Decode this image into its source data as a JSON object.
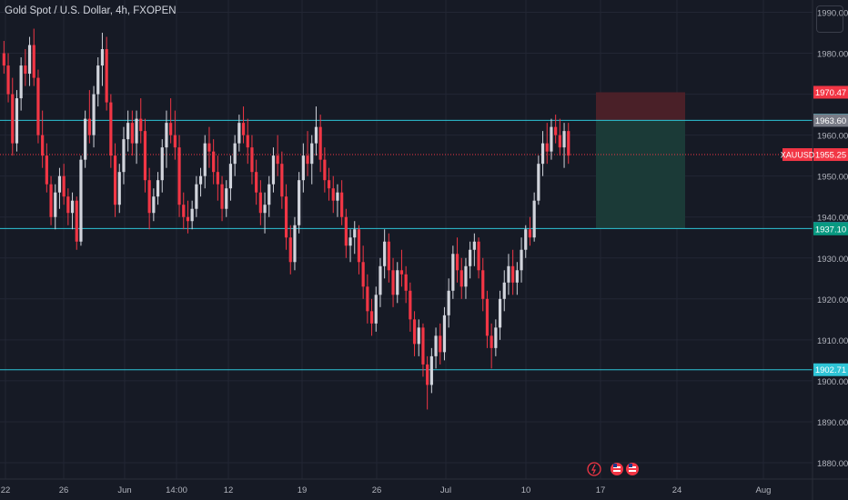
{
  "header": {
    "title": "Gold Spot / U.S. Dollar, 4h, FXOPEN"
  },
  "colors": {
    "background": "#161a25",
    "grid": "#222634",
    "up": "#d1d4dc",
    "down": "#f23645",
    "hline": "#2ec4d6",
    "tp_zone": "#1b3a37",
    "sl_zone": "#4a2028",
    "axis_text": "#b2b5be"
  },
  "events": [
    "flash-icon",
    "us-flag-icon",
    "us-flag-icon"
  ],
  "chart_data": {
    "type": "candlestick",
    "symbol": "XAUUSD",
    "ylim": [
      1876,
      1993
    ],
    "y_ticks": [
      "1880.00",
      "1890.00",
      "1900.00",
      "1910.00",
      "1920.00",
      "1930.00",
      "1940.00",
      "1950.00",
      "1960.00",
      "1970.00",
      "1980.00",
      "1990.00"
    ],
    "x_ticks": [
      "22",
      "26",
      "Jun",
      "14:00",
      "12",
      "19",
      "26",
      "Jul",
      "10",
      "17",
      "24",
      "Aug"
    ],
    "horizontal_levels": [
      1963.6,
      1937.2,
      1902.71
    ],
    "price_labels": [
      {
        "text": "1970.47",
        "value": 1970.47,
        "color": "#f23645"
      },
      {
        "text": "1963.67",
        "value": 1963.67,
        "color": "#2ec4d6"
      },
      {
        "text": "1963.60",
        "value": 1963.6,
        "color": "#787b86"
      },
      {
        "text": "1955.25",
        "value": 1955.25,
        "color": "#f23645"
      },
      {
        "text": "1937.20",
        "value": 1937.2,
        "color": "#2ec4d6"
      },
      {
        "text": "1937.10",
        "value": 1937.1,
        "color": "#089981"
      },
      {
        "text": "1902.71",
        "value": 1902.71,
        "color": "#2ec4d6"
      }
    ],
    "symbol_label": "XAUUSD",
    "last_price": 1955.25,
    "position": {
      "entry": 1963.6,
      "stop": 1970.47,
      "target": 1937.1
    },
    "candles": [
      [
        1980,
        1983,
        1975,
        1977
      ],
      [
        1977,
        1980,
        1968,
        1970
      ],
      [
        1970,
        1974,
        1955,
        1958
      ],
      [
        1958,
        1971,
        1956,
        1969
      ],
      [
        1969,
        1979,
        1966,
        1977
      ],
      [
        1977,
        1981,
        1972,
        1975
      ],
      [
        1975,
        1984,
        1972,
        1982
      ],
      [
        1982,
        1986,
        1972,
        1974
      ],
      [
        1974,
        1976,
        1958,
        1960
      ],
      [
        1960,
        1966,
        1952,
        1955
      ],
      [
        1955,
        1958,
        1946,
        1948
      ],
      [
        1948,
        1950,
        1938,
        1940
      ],
      [
        1940,
        1948,
        1937,
        1946
      ],
      [
        1946,
        1952,
        1942,
        1950
      ],
      [
        1950,
        1953,
        1943,
        1945
      ],
      [
        1945,
        1947,
        1938,
        1941
      ],
      [
        1941,
        1946,
        1937,
        1944
      ],
      [
        1944,
        1945,
        1932,
        1934
      ],
      [
        1934,
        1955,
        1933,
        1954
      ],
      [
        1954,
        1966,
        1952,
        1964
      ],
      [
        1964,
        1971,
        1958,
        1960
      ],
      [
        1960,
        1972,
        1957,
        1970
      ],
      [
        1970,
        1979,
        1967,
        1977
      ],
      [
        1977,
        1985,
        1972,
        1981
      ],
      [
        1981,
        1984,
        1966,
        1968
      ],
      [
        1968,
        1970,
        1952,
        1955
      ],
      [
        1955,
        1958,
        1940,
        1943
      ],
      [
        1943,
        1953,
        1941,
        1951
      ],
      [
        1951,
        1962,
        1948,
        1959
      ],
      [
        1959,
        1966,
        1956,
        1963
      ],
      [
        1963,
        1966,
        1955,
        1958
      ],
      [
        1958,
        1966,
        1953,
        1964
      ],
      [
        1964,
        1969,
        1958,
        1961
      ],
      [
        1961,
        1964,
        1946,
        1949
      ],
      [
        1949,
        1952,
        1937,
        1941
      ],
      [
        1941,
        1947,
        1939,
        1945
      ],
      [
        1945,
        1951,
        1943,
        1949
      ],
      [
        1949,
        1959,
        1946,
        1957
      ],
      [
        1957,
        1966,
        1952,
        1963
      ],
      [
        1963,
        1969,
        1958,
        1960
      ],
      [
        1960,
        1966,
        1954,
        1957
      ],
      [
        1957,
        1960,
        1940,
        1943
      ],
      [
        1943,
        1946,
        1937,
        1940
      ],
      [
        1940,
        1944,
        1936,
        1939
      ],
      [
        1939,
        1944,
        1937,
        1942
      ],
      [
        1942,
        1950,
        1940,
        1948
      ],
      [
        1948,
        1952,
        1945,
        1950
      ],
      [
        1950,
        1960,
        1947,
        1958
      ],
      [
        1958,
        1962,
        1952,
        1956
      ],
      [
        1956,
        1959,
        1948,
        1951
      ],
      [
        1951,
        1955,
        1944,
        1948
      ],
      [
        1948,
        1950,
        1939,
        1942
      ],
      [
        1942,
        1949,
        1940,
        1947
      ],
      [
        1947,
        1955,
        1944,
        1953
      ],
      [
        1953,
        1960,
        1950,
        1958
      ],
      [
        1958,
        1965,
        1956,
        1963
      ],
      [
        1963,
        1967,
        1958,
        1960
      ],
      [
        1960,
        1964,
        1953,
        1957
      ],
      [
        1957,
        1960,
        1948,
        1951
      ],
      [
        1951,
        1954,
        1943,
        1946
      ],
      [
        1946,
        1949,
        1938,
        1941
      ],
      [
        1941,
        1946,
        1936,
        1943
      ],
      [
        1943,
        1950,
        1940,
        1948
      ],
      [
        1948,
        1957,
        1946,
        1955
      ],
      [
        1955,
        1960,
        1950,
        1953
      ],
      [
        1953,
        1956,
        1942,
        1945
      ],
      [
        1945,
        1948,
        1932,
        1935
      ],
      [
        1935,
        1938,
        1926,
        1929
      ],
      [
        1929,
        1940,
        1927,
        1938
      ],
      [
        1938,
        1951,
        1936,
        1949
      ],
      [
        1949,
        1958,
        1946,
        1955
      ],
      [
        1955,
        1961,
        1950,
        1953
      ],
      [
        1953,
        1960,
        1948,
        1958
      ],
      [
        1958,
        1967,
        1955,
        1962
      ],
      [
        1962,
        1965,
        1951,
        1954
      ],
      [
        1954,
        1957,
        1946,
        1949
      ],
      [
        1949,
        1952,
        1944,
        1947
      ],
      [
        1947,
        1950,
        1941,
        1944
      ],
      [
        1944,
        1948,
        1940,
        1946
      ],
      [
        1946,
        1949,
        1938,
        1940
      ],
      [
        1940,
        1942,
        1930,
        1933
      ],
      [
        1933,
        1937,
        1929,
        1935
      ],
      [
        1935,
        1939,
        1931,
        1937
      ],
      [
        1937,
        1938,
        1926,
        1929
      ],
      [
        1929,
        1933,
        1920,
        1923
      ],
      [
        1923,
        1926,
        1914,
        1917
      ],
      [
        1917,
        1920,
        1911,
        1914
      ],
      [
        1914,
        1923,
        1912,
        1921
      ],
      [
        1921,
        1930,
        1918,
        1928
      ],
      [
        1928,
        1937,
        1925,
        1934
      ],
      [
        1934,
        1936,
        1924,
        1927
      ],
      [
        1927,
        1930,
        1918,
        1921
      ],
      [
        1921,
        1929,
        1919,
        1927
      ],
      [
        1927,
        1932,
        1923,
        1926
      ],
      [
        1926,
        1928,
        1919,
        1922
      ],
      [
        1922,
        1924,
        1912,
        1915
      ],
      [
        1915,
        1917,
        1906,
        1909
      ],
      [
        1909,
        1915,
        1906,
        1913
      ],
      [
        1913,
        1914,
        1901,
        1904
      ],
      [
        1904,
        1906,
        1893,
        1899
      ],
      [
        1899,
        1908,
        1897,
        1906
      ],
      [
        1906,
        1913,
        1903,
        1911
      ],
      [
        1911,
        1914,
        1904,
        1907
      ],
      [
        1907,
        1918,
        1905,
        1916
      ],
      [
        1916,
        1925,
        1913,
        1922
      ],
      [
        1922,
        1933,
        1920,
        1931
      ],
      [
        1931,
        1935,
        1924,
        1927
      ],
      [
        1927,
        1930,
        1920,
        1923
      ],
      [
        1923,
        1930,
        1920,
        1928
      ],
      [
        1928,
        1934,
        1925,
        1932
      ],
      [
        1932,
        1936,
        1928,
        1934
      ],
      [
        1934,
        1935,
        1925,
        1927
      ],
      [
        1927,
        1930,
        1917,
        1920
      ],
      [
        1920,
        1922,
        1908,
        1911
      ],
      [
        1911,
        1914,
        1903,
        1908
      ],
      [
        1908,
        1915,
        1906,
        1913
      ],
      [
        1913,
        1922,
        1910,
        1920
      ],
      [
        1920,
        1927,
        1917,
        1924
      ],
      [
        1924,
        1931,
        1921,
        1928
      ],
      [
        1928,
        1932,
        1921,
        1924
      ],
      [
        1924,
        1929,
        1921,
        1927
      ],
      [
        1927,
        1935,
        1924,
        1932
      ],
      [
        1932,
        1938,
        1930,
        1937
      ],
      [
        1937,
        1940,
        1933,
        1935
      ],
      [
        1935,
        1946,
        1934,
        1944
      ],
      [
        1944,
        1955,
        1943,
        1953
      ],
      [
        1953,
        1961,
        1950,
        1958
      ],
      [
        1958,
        1963,
        1953,
        1956
      ],
      [
        1956,
        1964,
        1954,
        1962
      ],
      [
        1962,
        1965,
        1958,
        1960
      ],
      [
        1960,
        1964,
        1955,
        1957
      ],
      [
        1957,
        1963,
        1952,
        1961
      ],
      [
        1961,
        1963,
        1953,
        1955
      ]
    ]
  }
}
